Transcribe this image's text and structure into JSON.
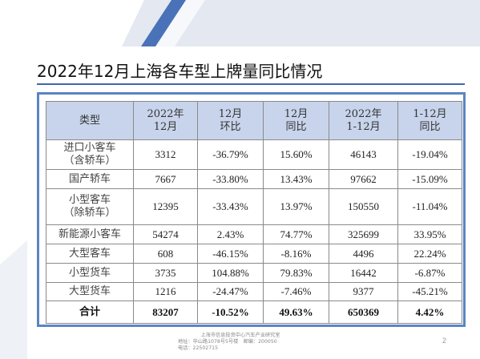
{
  "title": "2022年12月上海各车型上牌量同比情况",
  "table": {
    "headers": [
      {
        "line1": "类型",
        "line2": ""
      },
      {
        "line1": "2022年",
        "line2": "12月"
      },
      {
        "line1": "12月",
        "line2": "环比"
      },
      {
        "line1": "12月",
        "line2": "同比"
      },
      {
        "line1": "2022年",
        "line2": "1-12月"
      },
      {
        "line1": "1-12月",
        "line2": "同比"
      }
    ],
    "rows": [
      {
        "type1": "进口小客车",
        "type2": "（含轿车）",
        "dec": "3312",
        "mom": "-36.79%",
        "yoy": "15.60%",
        "ytd": "46143",
        "ytd_yoy": "-19.04%"
      },
      {
        "type1": "国产轿车",
        "type2": "",
        "dec": "7667",
        "mom": "-33.80%",
        "yoy": "13.43%",
        "ytd": "97662",
        "ytd_yoy": "-15.09%"
      },
      {
        "type1": "小型客车",
        "type2": "（除轿车）",
        "dec": "12395",
        "mom": "-33.43%",
        "yoy": "13.97%",
        "ytd": "150550",
        "ytd_yoy": "-11.04%"
      },
      {
        "type1": "新能源小客车",
        "type2": "",
        "dec": "54274",
        "mom": "2.43%",
        "yoy": "74.77%",
        "ytd": "325699",
        "ytd_yoy": "33.95%"
      },
      {
        "type1": "大型客车",
        "type2": "",
        "dec": "608",
        "mom": "-46.15%",
        "yoy": "-8.16%",
        "ytd": "4496",
        "ytd_yoy": "22.24%"
      },
      {
        "type1": "小型货车",
        "type2": "",
        "dec": "3735",
        "mom": "104.88%",
        "yoy": "79.83%",
        "ytd": "16442",
        "ytd_yoy": "-6.87%"
      },
      {
        "type1": "大型货车",
        "type2": "",
        "dec": "1216",
        "mom": "-24.47%",
        "yoy": "-7.46%",
        "ytd": "9377",
        "ytd_yoy": "-45.21%"
      }
    ],
    "total": {
      "type1": "合计",
      "dec": "83207",
      "mom": "-10.52%",
      "yoy": "49.63%",
      "ytd": "650369",
      "ytd_yoy": "4.42%"
    }
  },
  "footer": {
    "line1": "上海市信息投资中心汽车产业研究室",
    "line2": "地址：华山路1078号5号楼　邮编：200050",
    "line3": "电话：22502715"
  },
  "page_number": "2",
  "colors": {
    "header_bg": "#c8d4ec",
    "frame": "#5b84c4",
    "accent_bar": "#4a72b8"
  }
}
